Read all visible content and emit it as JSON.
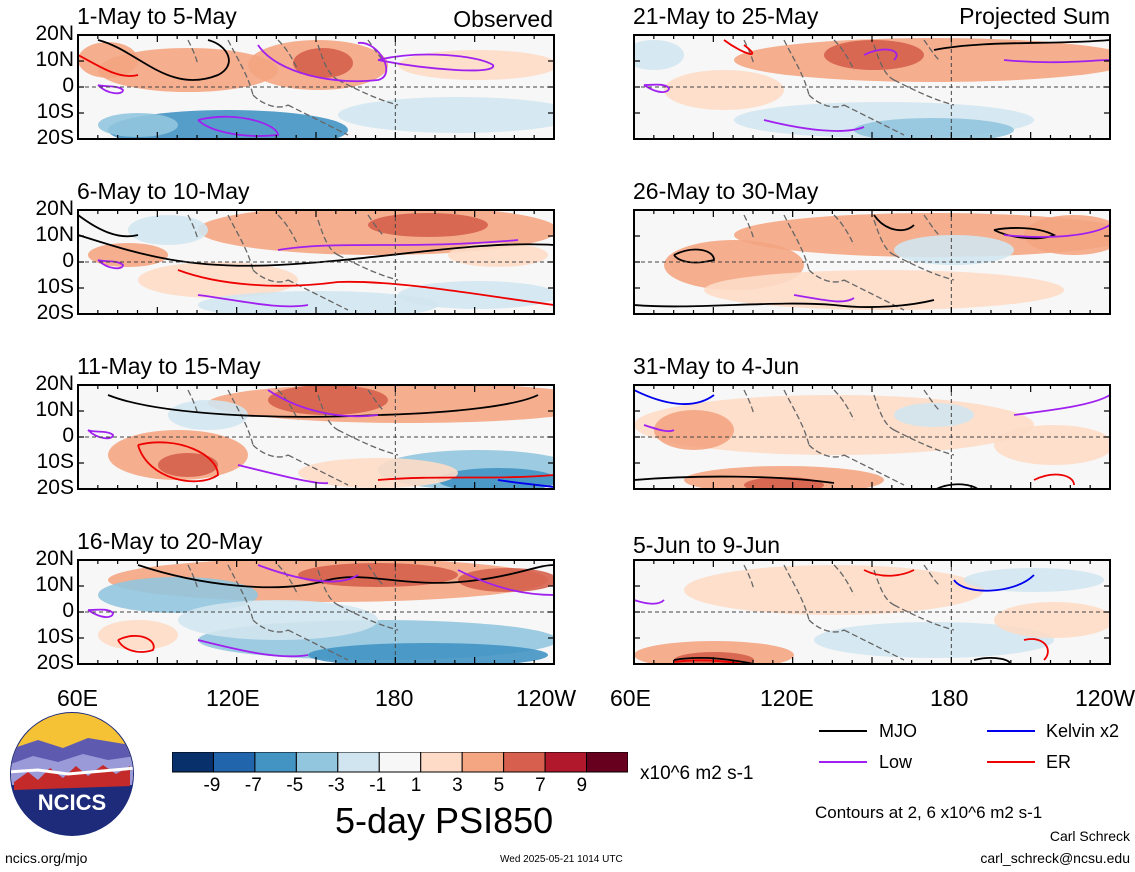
{
  "left_column_label": "Observed",
  "right_column_label": "Projected Sum",
  "panels": [
    {
      "period": "1-May to 5-May"
    },
    {
      "period": "6-May to 10-May"
    },
    {
      "period": "11-May to 15-May"
    },
    {
      "period": "16-May to 20-May"
    },
    {
      "period": "21-May to 25-May"
    },
    {
      "period": "26-May to 30-May"
    },
    {
      "period": "31-May to 4-Jun"
    },
    {
      "period": "5-Jun to 9-Jun"
    }
  ],
  "lat_labels": [
    "20N",
    "10N",
    "0",
    "10S",
    "20S"
  ],
  "lon_labels": [
    "60E",
    "120E",
    "180",
    "120W"
  ],
  "colorbar": {
    "ticks": [
      "-9",
      "-7",
      "-5",
      "-3",
      "-1",
      "1",
      "3",
      "5",
      "7",
      "9"
    ],
    "colors": [
      "#08306b",
      "#2166ac",
      "#4393c3",
      "#92c5de",
      "#d1e5f0",
      "#f7f7f7",
      "#fddbc7",
      "#f4a582",
      "#d6604d",
      "#b2182b",
      "#67001f"
    ],
    "units": "x10^6 m2 s-1"
  },
  "title": "5-day PSI850",
  "legend": [
    {
      "label": "MJO",
      "color": "#000000"
    },
    {
      "label": "Kelvin x2",
      "color": "#0000ee"
    },
    {
      "label": "Low",
      "color": "#a020f0"
    },
    {
      "label": "ER",
      "color": "#ee0000"
    }
  ],
  "contours_note": "Contours at 2, 6 x10^6 m2 s-1",
  "author": "Carl Schreck",
  "email": "carl_schreck@ncsu.edu",
  "website": "ncics.org/mjo",
  "timestamp": "Wed 2025-05-21 1014 UTC",
  "logo_text": "NCICS"
}
